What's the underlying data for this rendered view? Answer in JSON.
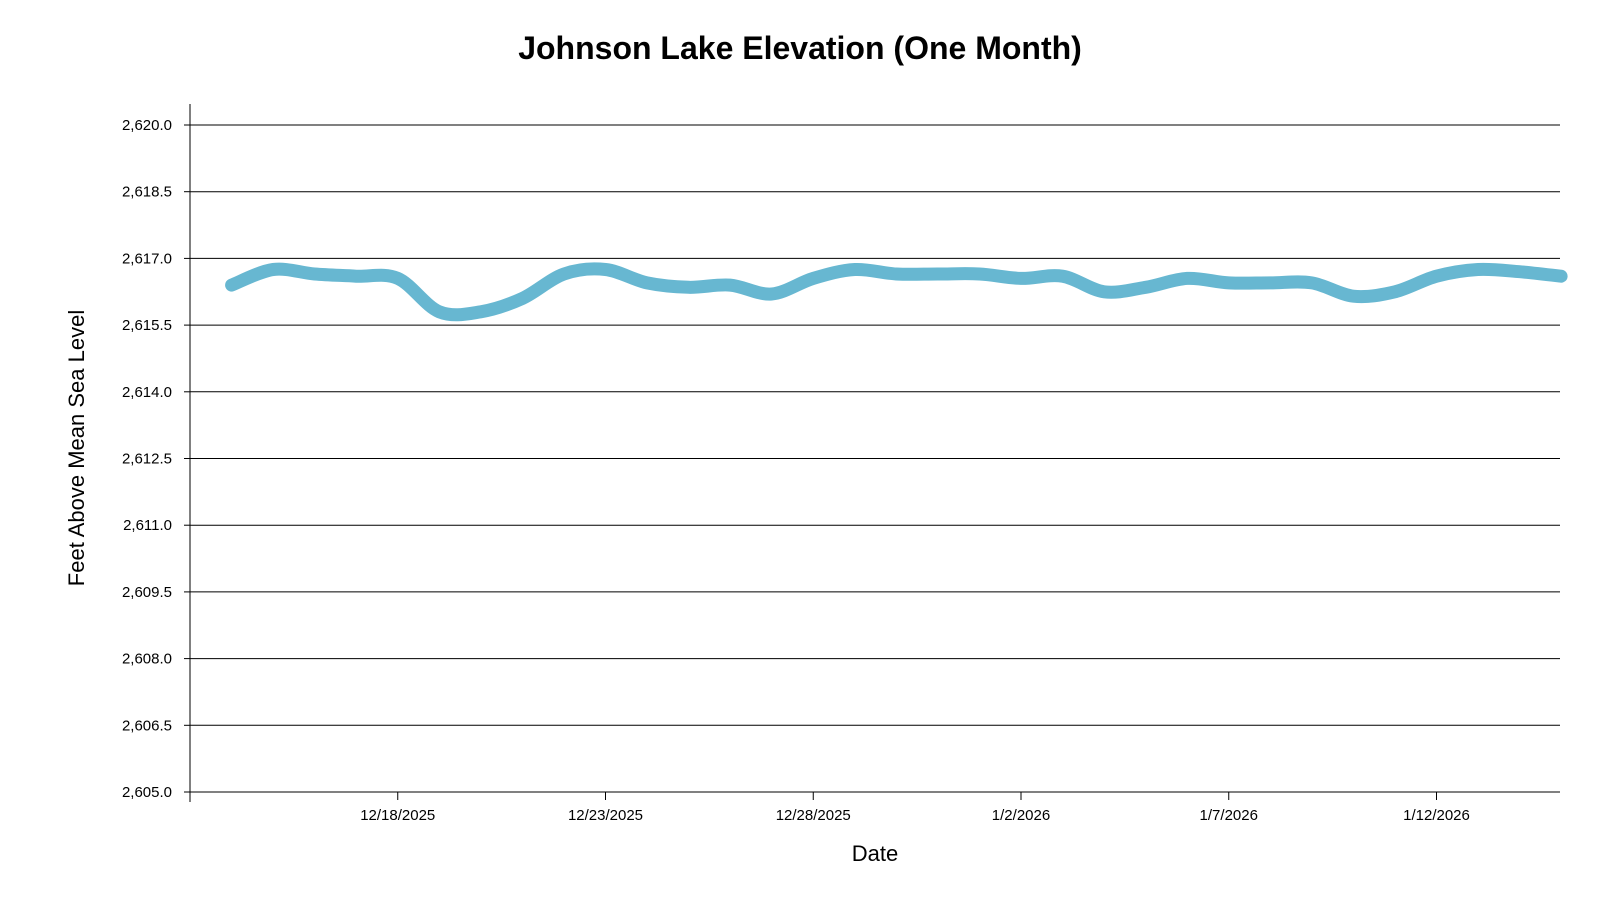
{
  "chart_data": {
    "type": "line",
    "title": "Johnson Lake Elevation (One Month)",
    "xlabel": "Date",
    "ylabel": "Feet Above Mean Sea Level",
    "ylim": [
      2605.0,
      2620.0
    ],
    "yticks": [
      2605.0,
      2606.5,
      2608.0,
      2609.5,
      2611.0,
      2612.5,
      2614.0,
      2615.5,
      2617.0,
      2618.5,
      2620.0
    ],
    "ytick_labels": [
      "2,605.0",
      "2,606.5",
      "2,608.0",
      "2,609.5",
      "2,611.0",
      "2,612.5",
      "2,614.0",
      "2,615.5",
      "2,617.0",
      "2,618.5",
      "2,620.0"
    ],
    "xlim": [
      "2025-12-13",
      "2026-01-16"
    ],
    "xticks": [
      "2025-12-18",
      "2025-12-23",
      "2025-12-28",
      "2026-01-02",
      "2026-01-07",
      "2026-01-12"
    ],
    "xtick_labels": [
      "12/18/2025",
      "12/23/2025",
      "12/28/2025",
      "1/2/2026",
      "1/7/2026",
      "1/12/2026"
    ],
    "grid": "horizontal",
    "series": [
      {
        "color": "#67b7d1",
        "points": [
          {
            "x": "2025-12-14",
            "y": 2616.4
          },
          {
            "x": "2025-12-15",
            "y": 2616.75
          },
          {
            "x": "2025-12-16",
            "y": 2616.65
          },
          {
            "x": "2025-12-17",
            "y": 2616.6
          },
          {
            "x": "2025-12-18",
            "y": 2616.55
          },
          {
            "x": "2025-12-19",
            "y": 2615.8
          },
          {
            "x": "2025-12-20",
            "y": 2615.8
          },
          {
            "x": "2025-12-21",
            "y": 2616.1
          },
          {
            "x": "2025-12-22",
            "y": 2616.65
          },
          {
            "x": "2025-12-23",
            "y": 2616.75
          },
          {
            "x": "2025-12-24",
            "y": 2616.45
          },
          {
            "x": "2025-12-25",
            "y": 2616.35
          },
          {
            "x": "2025-12-26",
            "y": 2616.4
          },
          {
            "x": "2025-12-27",
            "y": 2616.2
          },
          {
            "x": "2025-12-28",
            "y": 2616.55
          },
          {
            "x": "2025-12-29",
            "y": 2616.75
          },
          {
            "x": "2025-12-30",
            "y": 2616.65
          },
          {
            "x": "2025-12-31",
            "y": 2616.65
          },
          {
            "x": "2026-01-01",
            "y": 2616.65
          },
          {
            "x": "2026-01-02",
            "y": 2616.55
          },
          {
            "x": "2026-01-03",
            "y": 2616.6
          },
          {
            "x": "2026-01-04",
            "y": 2616.25
          },
          {
            "x": "2026-01-05",
            "y": 2616.35
          },
          {
            "x": "2026-01-06",
            "y": 2616.55
          },
          {
            "x": "2026-01-07",
            "y": 2616.45
          },
          {
            "x": "2026-01-08",
            "y": 2616.45
          },
          {
            "x": "2026-01-09",
            "y": 2616.45
          },
          {
            "x": "2026-01-10",
            "y": 2616.15
          },
          {
            "x": "2026-01-11",
            "y": 2616.25
          },
          {
            "x": "2026-01-12",
            "y": 2616.6
          },
          {
            "x": "2026-01-13",
            "y": 2616.75
          },
          {
            "x": "2026-01-14",
            "y": 2616.7
          },
          {
            "x": "2026-01-15",
            "y": 2616.6
          }
        ]
      }
    ]
  }
}
